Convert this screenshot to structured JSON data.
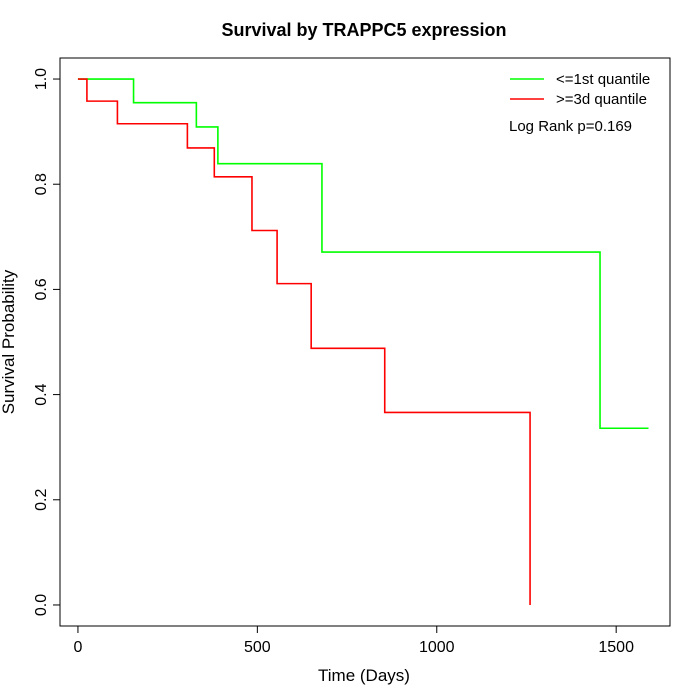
{
  "chart_data": {
    "type": "line",
    "title": "Survival by TRAPPC5 expression",
    "xlabel": "Time (Days)",
    "ylabel": "Survival Probability",
    "xlim": [
      -50,
      1650
    ],
    "ylim": [
      -0.04,
      1.04
    ],
    "x_ticks": [
      0,
      500,
      1000,
      1500
    ],
    "y_ticks": [
      0.0,
      0.2,
      0.4,
      0.6,
      0.8,
      1.0
    ],
    "y_tick_labels": [
      "0.0",
      "0.2",
      "0.4",
      "0.6",
      "0.8",
      "1.0"
    ],
    "legend_position": "top-right",
    "annotation": "Log Rank p=0.169",
    "series": [
      {
        "name": "<=1st quantile",
        "color": "#00ff00",
        "x": [
          0,
          155,
          330,
          390,
          680,
          1455,
          1590
        ],
        "y": [
          1.0,
          0.955,
          0.909,
          0.839,
          0.671,
          0.336,
          0.336
        ]
      },
      {
        "name": ">=3d quantile",
        "color": "#ff0000",
        "x": [
          0,
          25,
          110,
          305,
          380,
          485,
          555,
          650,
          855,
          1260,
          1260
        ],
        "y": [
          1.0,
          0.958,
          0.915,
          0.869,
          0.814,
          0.712,
          0.611,
          0.488,
          0.366,
          0.366,
          0.0
        ]
      }
    ]
  }
}
